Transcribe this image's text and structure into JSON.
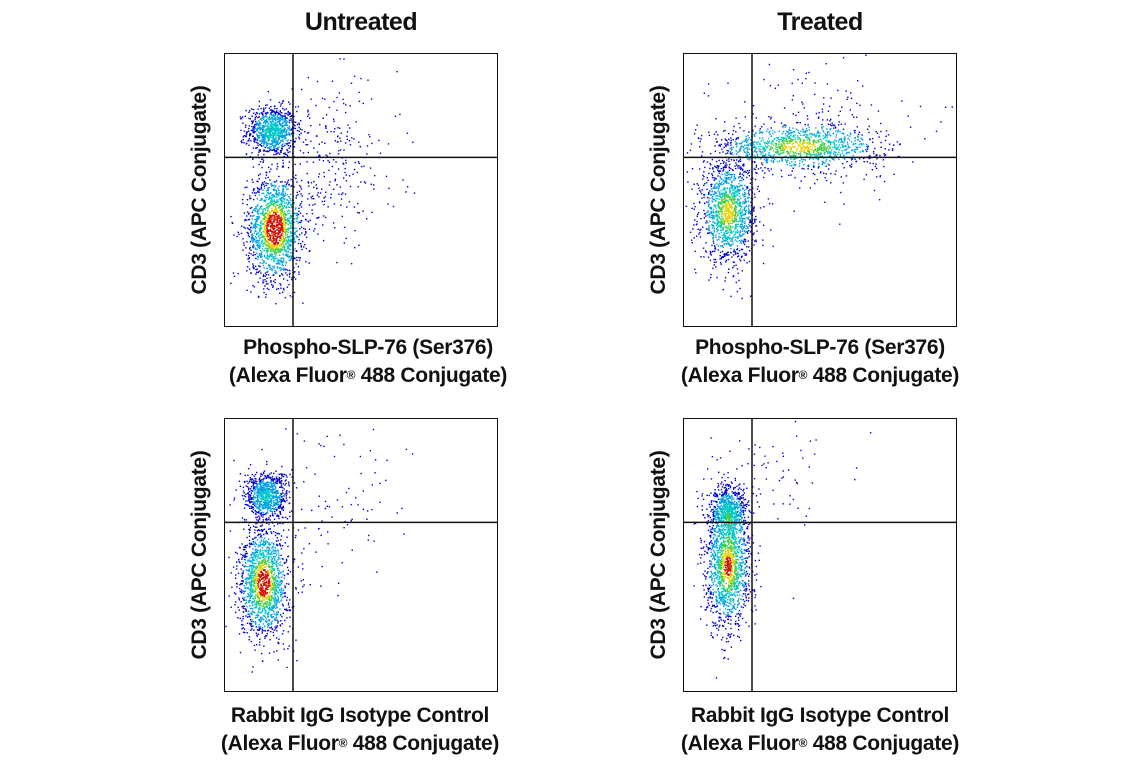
{
  "columns": [
    "Untreated",
    "Treated"
  ],
  "y_axis_label": "CD3 (APC Conjugate)",
  "x_labels": {
    "phospho": {
      "line1": "Phospho-SLP-76 (Ser376)",
      "line2_pre": "(Alexa Fluor",
      "line2_reg": "®",
      "line2_post": " 488 Conjugate)"
    },
    "isotype": {
      "line1": "Rabbit IgG Isotype Control",
      "line2_pre": "(Alexa Fluor",
      "line2_reg": "®",
      "line2_post": " 488 Conjugate)"
    }
  },
  "colors": {
    "density_low": "#0000d0",
    "density_mid": "#00c8c8",
    "density_high": "#e8d000",
    "density_peak": "#d01000",
    "gate_line": "#111111"
  },
  "chart_data": [
    {
      "type": "scatter",
      "title": "Untreated",
      "xlabel": "Phospho-SLP-76 (Ser376) (Alexa Fluor® 488 Conjugate)",
      "ylabel": "CD3 (APC Conjugate)",
      "xlim": [
        0,
        1
      ],
      "ylim": [
        0,
        1
      ],
      "quadrant_gate": {
        "x": 0.25,
        "y": 0.62
      },
      "populations": [
        {
          "cx": 0.17,
          "cy": 0.72,
          "sx": 0.045,
          "sy": 0.045,
          "n": 900
        },
        {
          "cx": 0.18,
          "cy": 0.36,
          "sx": 0.05,
          "sy": 0.095,
          "n": 1600
        },
        {
          "cx": 0.4,
          "cy": 0.6,
          "sx": 0.12,
          "sy": 0.15,
          "n": 260
        }
      ]
    },
    {
      "type": "scatter",
      "title": "Treated",
      "xlabel": "Phospho-SLP-76 (Ser376) (Alexa Fluor® 488 Conjugate)",
      "ylabel": "CD3 (APC Conjugate)",
      "xlim": [
        0,
        1
      ],
      "ylim": [
        0,
        1
      ],
      "quadrant_gate": {
        "x": 0.25,
        "y": 0.62
      },
      "populations": [
        {
          "cx": 0.16,
          "cy": 0.42,
          "sx": 0.05,
          "sy": 0.09,
          "n": 1300
        },
        {
          "cx": 0.42,
          "cy": 0.66,
          "sx": 0.15,
          "sy": 0.04,
          "n": 1100
        },
        {
          "cx": 0.45,
          "cy": 0.72,
          "sx": 0.18,
          "sy": 0.12,
          "n": 220
        }
      ]
    },
    {
      "type": "scatter",
      "title": "Untreated",
      "xlabel": "Rabbit IgG Isotype Control (Alexa Fluor® 488 Conjugate)",
      "ylabel": "CD3 (APC Conjugate)",
      "xlim": [
        0,
        1
      ],
      "ylim": [
        0,
        1
      ],
      "quadrant_gate": {
        "x": 0.25,
        "y": 0.62
      },
      "populations": [
        {
          "cx": 0.15,
          "cy": 0.72,
          "sx": 0.04,
          "sy": 0.045,
          "n": 800
        },
        {
          "cx": 0.14,
          "cy": 0.4,
          "sx": 0.045,
          "sy": 0.1,
          "n": 1500
        },
        {
          "cx": 0.4,
          "cy": 0.68,
          "sx": 0.14,
          "sy": 0.15,
          "n": 90
        }
      ]
    },
    {
      "type": "scatter",
      "title": "Treated",
      "xlabel": "Rabbit IgG Isotype Control (Alexa Fluor® 488 Conjugate)",
      "ylabel": "CD3 (APC Conjugate)",
      "xlim": [
        0,
        1
      ],
      "ylim": [
        0,
        1
      ],
      "quadrant_gate": {
        "x": 0.25,
        "y": 0.62
      },
      "populations": [
        {
          "cx": 0.16,
          "cy": 0.66,
          "sx": 0.035,
          "sy": 0.05,
          "n": 700
        },
        {
          "cx": 0.16,
          "cy": 0.46,
          "sx": 0.04,
          "sy": 0.11,
          "n": 1400
        },
        {
          "cx": 0.35,
          "cy": 0.82,
          "sx": 0.12,
          "sy": 0.12,
          "n": 70
        }
      ]
    }
  ]
}
